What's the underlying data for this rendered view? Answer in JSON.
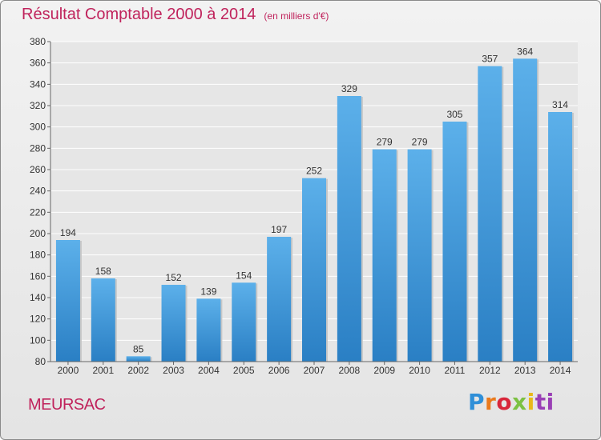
{
  "header": {
    "title": "Résultat Comptable 2000 à 2014",
    "subtitle": "(en milliers d'€)"
  },
  "footer": {
    "location": "MEURSAC",
    "brand_parts": [
      "P",
      "r",
      "o",
      "x",
      "i",
      "ti"
    ]
  },
  "colors": {
    "title": "#c0235c",
    "bar_top": "#5cb0ea",
    "bar_bottom": "#2a7fc4",
    "grid": "#ffffff"
  },
  "chart_data": {
    "type": "bar",
    "title": "Résultat Comptable 2000 à 2014",
    "subtitle": "(en milliers d'€)",
    "categories": [
      "2000",
      "2001",
      "2002",
      "2003",
      "2004",
      "2005",
      "2006",
      "2007",
      "2008",
      "2009",
      "2010",
      "2011",
      "2012",
      "2013",
      "2014"
    ],
    "values": [
      194,
      158,
      85,
      152,
      139,
      154,
      197,
      252,
      329,
      279,
      279,
      305,
      357,
      364,
      314
    ],
    "ylim": [
      80,
      380
    ],
    "yticks": [
      80,
      100,
      120,
      140,
      160,
      180,
      200,
      220,
      240,
      260,
      280,
      300,
      320,
      340,
      360,
      380
    ],
    "grid": true,
    "data_labels": true
  }
}
